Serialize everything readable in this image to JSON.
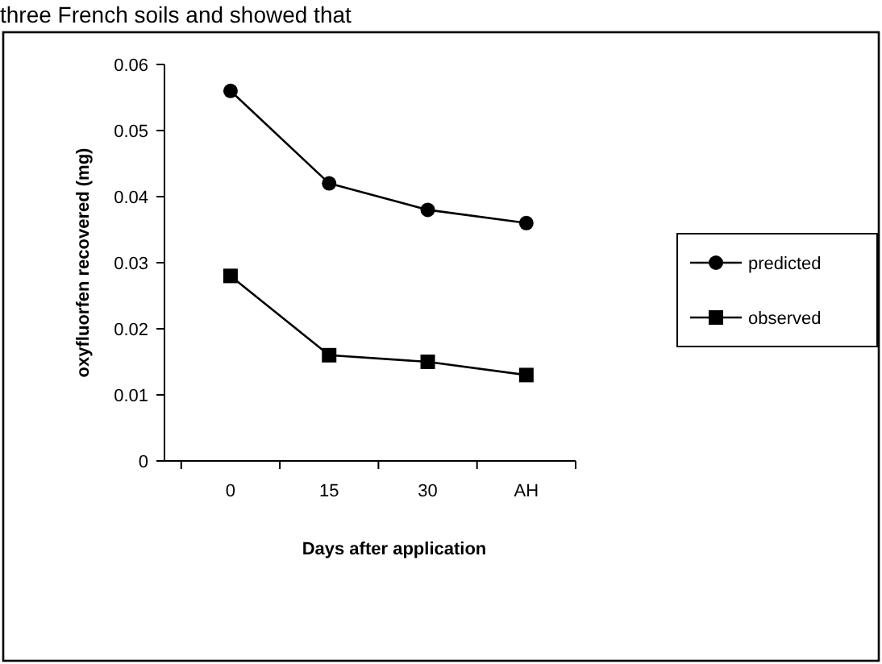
{
  "chart_data": {
    "type": "line",
    "annotations": [
      "three French soils and showed that"
    ],
    "xlabel": "Days after application",
    "ylabel": "oxyfluorfen recovered  (mg)",
    "categories": [
      "0",
      "15",
      "30",
      "AH"
    ],
    "ylim": [
      0,
      0.06
    ],
    "yticks": [
      0,
      0.01,
      0.02,
      0.03,
      0.04,
      0.05,
      0.06
    ],
    "series": [
      {
        "name": "predicted",
        "color": "#000000",
        "marker": "circle",
        "values": [
          0.056,
          0.042,
          0.038,
          0.036
        ]
      },
      {
        "name": "observed",
        "color": "#000000",
        "marker": "square",
        "values": [
          0.028,
          0.016,
          0.015,
          0.013
        ]
      }
    ],
    "legend": "right",
    "grid": false,
    "line_style": "solid"
  }
}
